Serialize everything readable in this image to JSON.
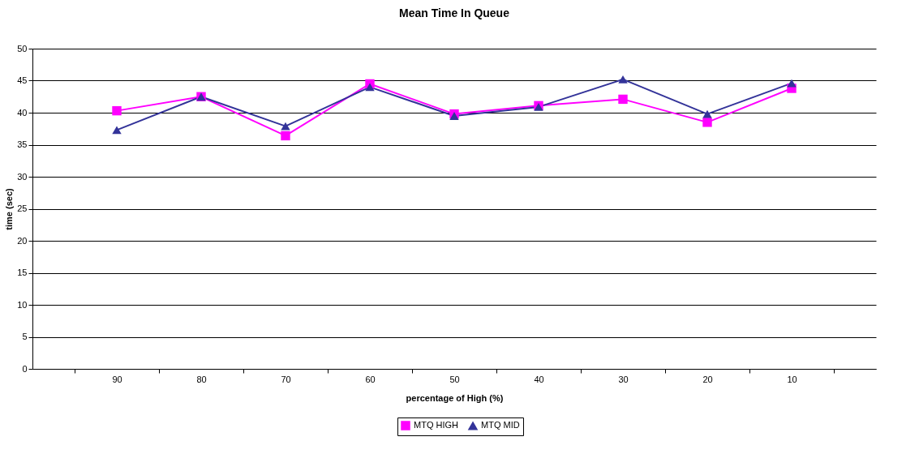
{
  "chart_data": {
    "type": "line",
    "title": "Mean Time In Queue",
    "xlabel": "percentage of High (%)",
    "ylabel": "time (sec)",
    "categories": [
      "90",
      "80",
      "70",
      "60",
      "50",
      "40",
      "30",
      "20",
      "10"
    ],
    "series": [
      {
        "name": "MTQ HIGH",
        "color": "#ff00ff",
        "marker": "square",
        "values": [
          40.3,
          42.5,
          36.4,
          44.5,
          39.8,
          41.1,
          42.1,
          38.5,
          43.8
        ]
      },
      {
        "name": "MTQ MID",
        "color": "#333399",
        "marker": "triangle",
        "values": [
          37.3,
          42.5,
          37.9,
          44.0,
          39.5,
          40.9,
          45.2,
          39.8,
          44.6
        ]
      }
    ],
    "ylim": [
      0,
      50
    ],
    "yticks": [
      0,
      5,
      10,
      15,
      20,
      25,
      30,
      35,
      40,
      45,
      50
    ],
    "grid": "y",
    "legend": "bottom"
  }
}
